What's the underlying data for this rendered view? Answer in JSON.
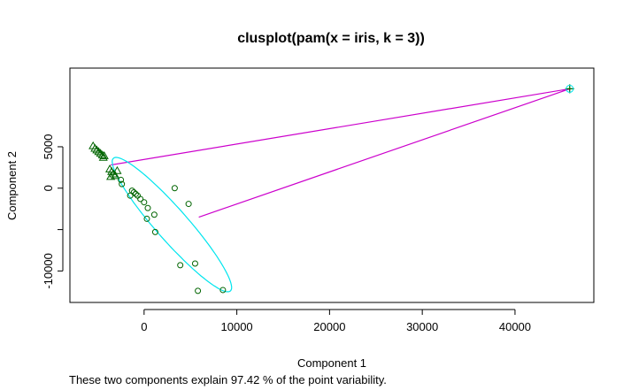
{
  "chart_data": {
    "type": "scatter",
    "title": "clusplot(pam(x = iris, k = 3))",
    "xlabel": "Component 1",
    "ylabel": "Component 2",
    "subtitle": "These two components explain 97.42 % of the point variability.",
    "xlim": [
      -8000,
      48500
    ],
    "ylim": [
      -13800,
      14500
    ],
    "xticks": [
      0,
      10000,
      20000,
      30000,
      40000
    ],
    "yticks": [
      -10000,
      -5000,
      0,
      5000
    ],
    "ytick_labels": [
      "-10000",
      "",
      "0",
      "5000"
    ],
    "grid": false,
    "colors": {
      "points": "#006400",
      "ellipse": "#00e5ee",
      "connectors": "#cc00cc",
      "axes": "#000000"
    },
    "clusters": [
      {
        "id": 1,
        "symbol": "triangle",
        "points": [
          [
            -5500,
            5100
          ],
          [
            -5300,
            4800
          ],
          [
            -5100,
            4600
          ],
          [
            -4900,
            4400
          ],
          [
            -4700,
            4200
          ],
          [
            -4500,
            4000
          ],
          [
            -4300,
            3900
          ],
          [
            -4400,
            3700
          ],
          [
            -3700,
            2300
          ],
          [
            -3500,
            2000
          ],
          [
            -3300,
            1700
          ],
          [
            -3100,
            1500
          ],
          [
            -3600,
            1400
          ],
          [
            -2900,
            2100
          ]
        ]
      },
      {
        "id": 2,
        "symbol": "circle",
        "points": [
          [
            -2500,
            1000
          ],
          [
            -2400,
            500
          ],
          [
            -1300,
            -300
          ],
          [
            -1100,
            -500
          ],
          [
            -900,
            -700
          ],
          [
            -700,
            -900
          ],
          [
            -400,
            -1300
          ],
          [
            0,
            -1700
          ],
          [
            400,
            -2400
          ],
          [
            1100,
            -3200
          ],
          [
            -1500,
            -900
          ],
          [
            300,
            -3700
          ],
          [
            1200,
            -5300
          ],
          [
            3300,
            0
          ],
          [
            4800,
            -1900
          ],
          [
            3900,
            -9300
          ],
          [
            5500,
            -9100
          ],
          [
            5800,
            -12400
          ],
          [
            8500,
            -12300
          ]
        ]
      },
      {
        "id": 3,
        "symbol": "plus",
        "points": [
          [
            45900,
            12000
          ]
        ]
      }
    ],
    "ellipses": [
      {
        "cluster": 2,
        "center": [
          3000,
          -4400
        ],
        "semi_major": 10200,
        "semi_minor": 1800,
        "angle_deg": -52
      }
    ],
    "connectors": [
      {
        "from": [
          -3600,
          2800
        ],
        "to": [
          45900,
          12000
        ]
      },
      {
        "from": [
          5900,
          -3500
        ],
        "to": [
          45900,
          12000
        ]
      }
    ]
  }
}
